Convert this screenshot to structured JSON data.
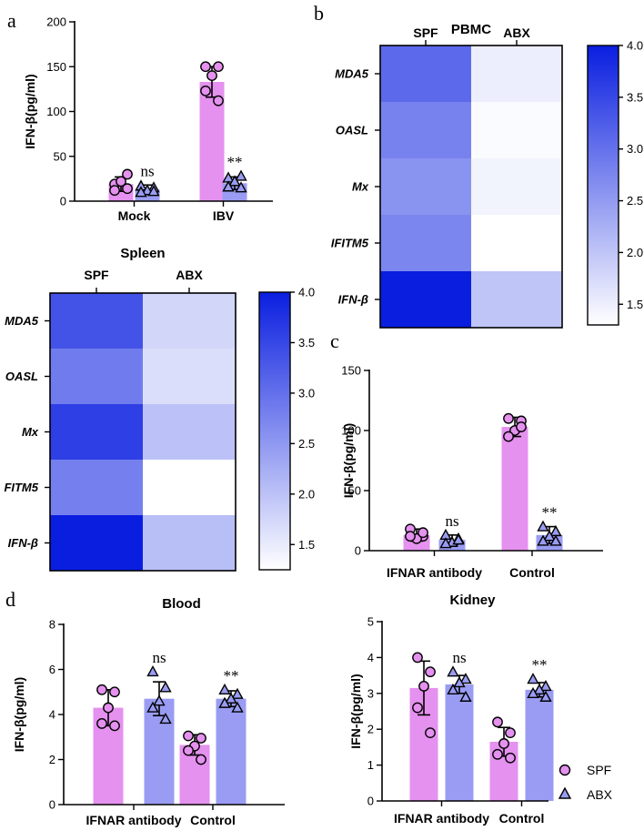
{
  "panel_labels": {
    "a": "a",
    "b": "b",
    "c": "c",
    "d": "d"
  },
  "colors": {
    "spf": "#e591ef",
    "abx": "#9a9cf3",
    "heat_low": "#ffffff",
    "heat_high": "#0a1ee0"
  },
  "legend": {
    "spf": "SPF",
    "abx": "ABX"
  },
  "chart_data": [
    {
      "id": "a",
      "type": "bar",
      "title": "",
      "ylabel": "IFN-β(pg/ml)",
      "ylim": [
        0,
        200
      ],
      "yticks": [
        "0",
        "50",
        "100",
        "150",
        "200"
      ],
      "categories": [
        "Mock",
        "IBV"
      ],
      "series": [
        {
          "name": "SPF",
          "values": [
            19,
            133
          ],
          "err": [
            8,
            17
          ],
          "points": [
            [
              19,
              30,
              22,
              12,
              14
            ],
            [
              150,
              150,
              140,
              123,
              112
            ]
          ]
        },
        {
          "name": "ABX",
          "values": [
            13,
            20
          ],
          "err": [
            5,
            7
          ],
          "points": [
            [
              17,
              15,
              12,
              10,
              11
            ],
            [
              26,
              28,
              22,
              16,
              15
            ]
          ]
        }
      ],
      "sig": [
        "ns",
        "**"
      ]
    },
    {
      "id": "b",
      "type": "heatmap",
      "title": "PBMC",
      "columns": [
        "SPF",
        "ABX"
      ],
      "rows": [
        "MDA5",
        "OASL",
        "Mx",
        "IFITM5",
        "IFN-β"
      ],
      "values": [
        [
          3.1,
          1.5
        ],
        [
          2.8,
          1.35
        ],
        [
          2.6,
          1.45
        ],
        [
          2.75,
          1.3
        ],
        [
          4.0,
          2.0
        ]
      ],
      "scale": {
        "min": 1.3,
        "max": 4.0,
        "ticks": [
          "4.0",
          "3.5",
          "3.0",
          "2.5",
          "2.0",
          "1.5"
        ]
      }
    },
    {
      "id": "spleen",
      "type": "heatmap",
      "title": "Spleen",
      "columns": [
        "SPF",
        "ABX"
      ],
      "rows": [
        "MDA5",
        "OASL",
        "Mx",
        "FITM5",
        "IFN-β"
      ],
      "values": [
        [
          3.35,
          1.75
        ],
        [
          2.85,
          1.65
        ],
        [
          3.6,
          2.0
        ],
        [
          2.8,
          1.25
        ],
        [
          4.0,
          2.05
        ]
      ],
      "scale": {
        "min": 1.25,
        "max": 4.0,
        "ticks": [
          "4.0",
          "3.5",
          "3.0",
          "2.5",
          "2.0",
          "1.5"
        ]
      }
    },
    {
      "id": "c",
      "type": "bar",
      "title": "",
      "ylabel": "IFN-β(pg/ml)",
      "ylim": [
        0,
        150
      ],
      "yticks": [
        "0",
        "50",
        "100",
        "150"
      ],
      "categories": [
        "IFNAR antibody",
        "Control"
      ],
      "series": [
        {
          "name": "SPF",
          "values": [
            13,
            103
          ],
          "err": [
            5,
            8
          ],
          "points": [
            [
              18,
              12,
              10,
              12,
              15
            ],
            [
              110,
              108,
              100,
              95,
              103
            ]
          ]
        },
        {
          "name": "ABX",
          "values": [
            9,
            13
          ],
          "err": [
            4,
            7
          ],
          "points": [
            [
              13,
              10,
              7,
              6,
              9
            ],
            [
              20,
              16,
              12,
              8,
              8
            ]
          ]
        }
      ],
      "sig": [
        "ns",
        "**"
      ]
    },
    {
      "id": "blood",
      "type": "bar",
      "title": "Blood",
      "ylabel": "IFN-β(pg/ml)",
      "ylim": [
        0,
        8
      ],
      "yticks": [
        "0",
        "2",
        "4",
        "6",
        "8"
      ],
      "categories": [
        "IFNAR antibody",
        "Control"
      ],
      "series": [
        {
          "name": "SPF",
          "values": [
            4.3,
            2.65
          ],
          "err": [
            0.8,
            0.45
          ],
          "points": [
            [
              5.1,
              5.0,
              4.3,
              3.6,
              3.5
            ],
            [
              3.05,
              2.95,
              2.6,
              2.4,
              2.0
            ]
          ]
        },
        {
          "name": "ABX",
          "values": [
            4.7,
            4.7
          ],
          "err": [
            0.75,
            0.35
          ],
          "points": [
            [
              5.9,
              5.2,
              4.6,
              4.3,
              3.8
            ],
            [
              5.1,
              4.9,
              4.7,
              4.5,
              4.3
            ]
          ]
        }
      ],
      "sig": [
        "ns",
        "**"
      ]
    },
    {
      "id": "kidney",
      "type": "bar",
      "title": "Kidney",
      "ylabel": "IFN-β(pg/ml)",
      "ylim": [
        0,
        5
      ],
      "yticks": [
        "0",
        "1",
        "2",
        "3",
        "4",
        "5"
      ],
      "categories": [
        "IFNAR antibody",
        "Control"
      ],
      "series": [
        {
          "name": "SPF",
          "values": [
            3.15,
            1.65
          ],
          "err": [
            0.75,
            0.4
          ],
          "points": [
            [
              4.0,
              3.6,
              3.2,
              2.6,
              1.9
            ],
            [
              2.2,
              1.9,
              1.6,
              1.3,
              1.2
            ]
          ]
        },
        {
          "name": "ABX",
          "values": [
            3.25,
            3.1
          ],
          "err": [
            0.25,
            0.2
          ],
          "points": [
            [
              3.6,
              3.4,
              3.3,
              3.1,
              2.9
            ],
            [
              3.4,
              3.2,
              3.1,
              3.0,
              2.9
            ]
          ]
        }
      ],
      "sig": [
        "ns",
        "**"
      ]
    }
  ]
}
